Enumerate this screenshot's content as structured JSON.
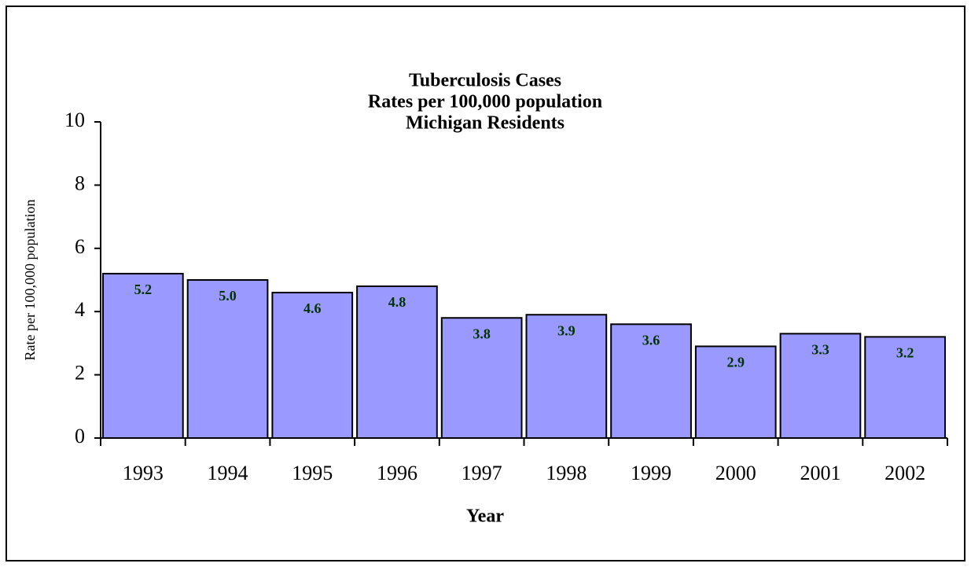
{
  "chart_data": {
    "type": "bar",
    "title": [
      "Tuberculosis Cases",
      "Rates per 100,000 population",
      "Michigan Residents"
    ],
    "x_label": "Year",
    "y_label": "Rate per 100,000 population",
    "categories": [
      "1993",
      "1994",
      "1995",
      "1996",
      "1997",
      "1998",
      "1999",
      "2000",
      "2001",
      "2002"
    ],
    "values": [
      5.2,
      5.0,
      4.6,
      4.8,
      3.8,
      3.9,
      3.6,
      2.9,
      3.3,
      3.2
    ],
    "value_labels": [
      "5.2",
      "5.0",
      "4.6",
      "4.8",
      "3.8",
      "3.9",
      "3.6",
      "2.9",
      "3.3",
      "3.2"
    ],
    "color": "#9999ff",
    "ylim": [
      0,
      10
    ],
    "yticks": [
      0,
      2,
      4,
      6,
      8,
      10
    ],
    "grid": false
  }
}
